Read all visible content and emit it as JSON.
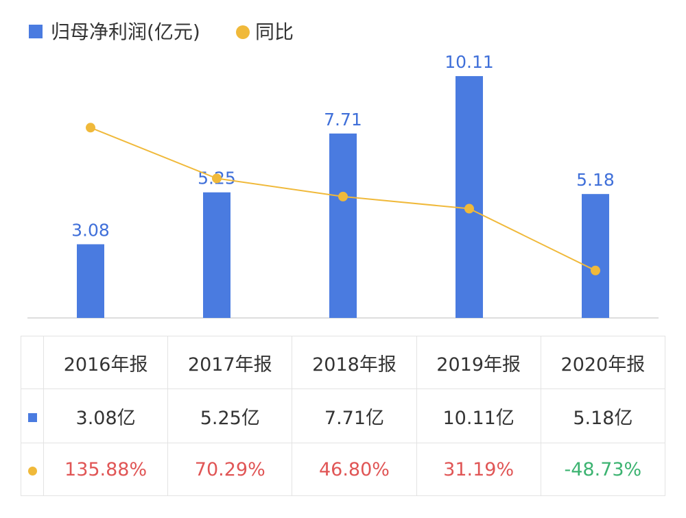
{
  "colors": {
    "bar": "#4a7be0",
    "line": "#f0b93a",
    "positive": "#e05555",
    "negative": "#3cb371",
    "axis": "#dddddd"
  },
  "legend": {
    "bar_label": "归母净利润(亿元)",
    "line_label": "同比"
  },
  "chart_data": {
    "type": "bar",
    "categories": [
      "2016年报",
      "2017年报",
      "2018年报",
      "2019年报",
      "2020年报"
    ],
    "series": [
      {
        "name": "归母净利润(亿元)",
        "type": "bar",
        "values": [
          3.08,
          5.25,
          7.71,
          10.11,
          5.18
        ],
        "labels": [
          "3.08",
          "5.25",
          "7.71",
          "10.11",
          "5.18"
        ]
      },
      {
        "name": "同比",
        "type": "line",
        "values": [
          135.88,
          70.29,
          46.8,
          31.19,
          -48.73
        ]
      }
    ],
    "ylim_bar": [
      0,
      11
    ],
    "ylim_line": [
      -110,
      230
    ],
    "legend_position": "top-left",
    "grid": false
  },
  "table": {
    "headers": [
      "2016年报",
      "2017年报",
      "2018年报",
      "2019年报",
      "2020年报"
    ],
    "values": [
      "3.08亿",
      "5.25亿",
      "7.71亿",
      "10.11亿",
      "5.18亿"
    ],
    "yoy": [
      "135.88%",
      "70.29%",
      "46.80%",
      "31.19%",
      "-48.73%"
    ],
    "yoy_sign": [
      "positive",
      "positive",
      "positive",
      "positive",
      "negative"
    ]
  }
}
